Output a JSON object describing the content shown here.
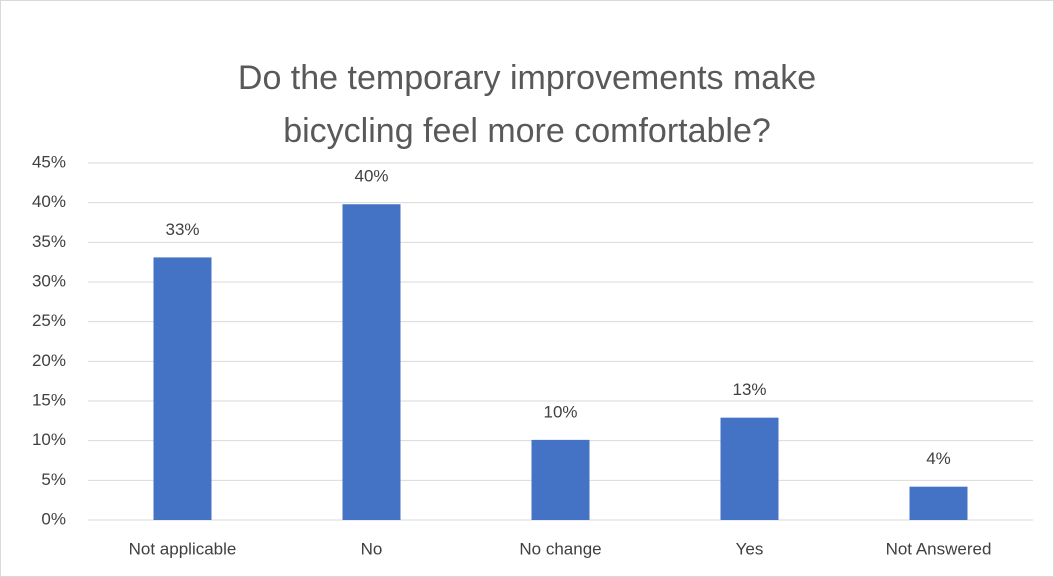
{
  "chart_data": {
    "type": "bar",
    "title": "Do the temporary improvements make bicycling feel more comfortable?",
    "categories": [
      "Not applicable",
      "No",
      "No change",
      "Yes",
      "Not Answered"
    ],
    "values": [
      33.1,
      39.8,
      10.1,
      12.9,
      4.2
    ],
    "value_labels": [
      "33%",
      "40%",
      "10%",
      "13%",
      "4%"
    ],
    "color": "#4472c4",
    "ylim": [
      0,
      45
    ],
    "yticks": [
      {
        "value": 0,
        "label": "0%"
      },
      {
        "value": 5,
        "label": "5%"
      },
      {
        "value": 10,
        "label": "10%"
      },
      {
        "value": 15,
        "label": "15%"
      },
      {
        "value": 20,
        "label": "20%"
      },
      {
        "value": 25,
        "label": "25%"
      },
      {
        "value": 30,
        "label": "30%"
      },
      {
        "value": 35,
        "label": "35%"
      },
      {
        "value": 40,
        "label": "40%"
      },
      {
        "value": 45,
        "label": "45%"
      }
    ],
    "grid": true
  }
}
